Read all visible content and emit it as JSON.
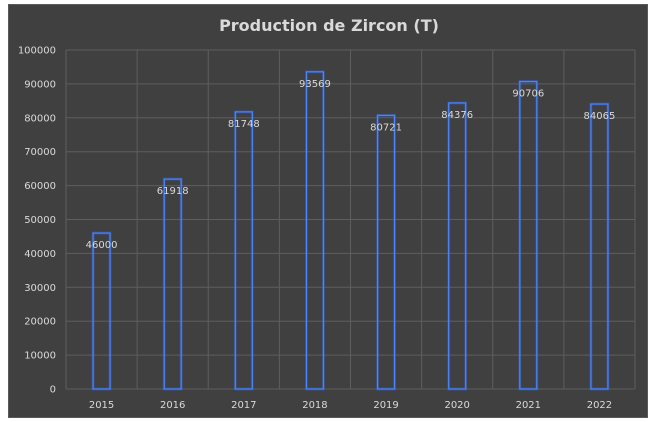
{
  "chart_data": {
    "type": "bar",
    "title": "Production de Zircon (T)",
    "categories": [
      "2015",
      "2016",
      "2017",
      "2018",
      "2019",
      "2020",
      "2021",
      "2022"
    ],
    "values": [
      46000,
      61918,
      81748,
      93569,
      80721,
      84376,
      90706,
      84065
    ],
    "ylim": [
      0,
      100000
    ],
    "yticks": [
      0,
      10000,
      20000,
      30000,
      40000,
      50000,
      60000,
      70000,
      80000,
      90000,
      100000
    ],
    "grid": true,
    "legend": "none",
    "colors": {
      "background": "#404040",
      "bar_outline": "#4a86ff",
      "text": "#d9d9d9",
      "grid": "#5e5e5e"
    }
  }
}
